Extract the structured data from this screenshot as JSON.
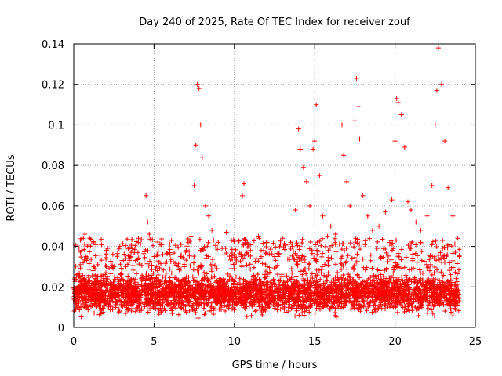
{
  "chart_data": {
    "type": "scatter",
    "title": "Day 240 of 2025, Rate Of TEC Index for receiver zouf",
    "xlabel": "GPS time / hours",
    "ylabel": "ROTI / TECUs",
    "xlim": [
      0,
      25
    ],
    "ylim": [
      0,
      0.14
    ],
    "xticks": [
      0,
      5,
      10,
      15,
      20,
      25
    ],
    "xtick_labels": [
      "0",
      "5",
      "10",
      "15",
      "20",
      "25"
    ],
    "yticks": [
      0,
      0.02,
      0.04,
      0.06,
      0.08,
      0.1,
      0.12,
      0.14
    ],
    "ytick_labels": [
      "0",
      "0.02",
      "0.04",
      "0.06",
      "0.08",
      "0.1",
      "0.12",
      "0.14"
    ],
    "grid": true,
    "marker": "plus",
    "color": "#ff0000",
    "series": [
      {
        "name": "ROTI",
        "points": [
          [
            0.1,
            0.012
          ],
          [
            0.2,
            0.018
          ],
          [
            0.3,
            0.025
          ],
          [
            0.4,
            0.031
          ],
          [
            0.5,
            0.038
          ],
          [
            0.6,
            0.044
          ],
          [
            0.7,
            0.046
          ],
          [
            0.8,
            0.033
          ],
          [
            1.0,
            0.044
          ],
          [
            1.2,
            0.028
          ],
          [
            1.5,
            0.031
          ],
          [
            2.0,
            0.027
          ],
          [
            2.5,
            0.03
          ],
          [
            3.0,
            0.033
          ],
          [
            3.5,
            0.035
          ],
          [
            4.0,
            0.037
          ],
          [
            4.5,
            0.065
          ],
          [
            4.6,
            0.052
          ],
          [
            4.7,
            0.046
          ],
          [
            5.0,
            0.035
          ],
          [
            5.5,
            0.041
          ],
          [
            6.0,
            0.036
          ],
          [
            6.5,
            0.03
          ],
          [
            7.0,
            0.038
          ],
          [
            7.3,
            0.045
          ],
          [
            7.5,
            0.07
          ],
          [
            7.6,
            0.09
          ],
          [
            7.7,
            0.12
          ],
          [
            7.8,
            0.118
          ],
          [
            7.9,
            0.1
          ],
          [
            8.0,
            0.084
          ],
          [
            8.2,
            0.06
          ],
          [
            8.4,
            0.055
          ],
          [
            8.6,
            0.048
          ],
          [
            9.0,
            0.042
          ],
          [
            9.5,
            0.047
          ],
          [
            10.0,
            0.036
          ],
          [
            10.5,
            0.065
          ],
          [
            10.6,
            0.071
          ],
          [
            10.8,
            0.042
          ],
          [
            11.0,
            0.038
          ],
          [
            11.5,
            0.045
          ],
          [
            12.0,
            0.042
          ],
          [
            12.5,
            0.035
          ],
          [
            13.0,
            0.044
          ],
          [
            13.5,
            0.042
          ],
          [
            13.8,
            0.058
          ],
          [
            14.0,
            0.098
          ],
          [
            14.1,
            0.088
          ],
          [
            14.3,
            0.079
          ],
          [
            14.5,
            0.072
          ],
          [
            14.7,
            0.06
          ],
          [
            14.9,
            0.088
          ],
          [
            15.0,
            0.092
          ],
          [
            15.1,
            0.11
          ],
          [
            15.3,
            0.075
          ],
          [
            15.5,
            0.055
          ],
          [
            15.8,
            0.045
          ],
          [
            16.0,
            0.05
          ],
          [
            16.3,
            0.046
          ],
          [
            16.7,
            0.1
          ],
          [
            16.8,
            0.085
          ],
          [
            17.0,
            0.072
          ],
          [
            17.2,
            0.06
          ],
          [
            17.5,
            0.102
          ],
          [
            17.6,
            0.123
          ],
          [
            17.7,
            0.109
          ],
          [
            17.8,
            0.093
          ],
          [
            18.0,
            0.065
          ],
          [
            18.3,
            0.055
          ],
          [
            18.6,
            0.048
          ],
          [
            19.0,
            0.05
          ],
          [
            19.4,
            0.057
          ],
          [
            19.8,
            0.063
          ],
          [
            20.0,
            0.092
          ],
          [
            20.1,
            0.113
          ],
          [
            20.2,
            0.111
          ],
          [
            20.4,
            0.105
          ],
          [
            20.6,
            0.089
          ],
          [
            20.8,
            0.062
          ],
          [
            21.0,
            0.058
          ],
          [
            21.3,
            0.052
          ],
          [
            21.6,
            0.048
          ],
          [
            22.0,
            0.055
          ],
          [
            22.3,
            0.07
          ],
          [
            22.5,
            0.1
          ],
          [
            22.6,
            0.117
          ],
          [
            22.7,
            0.138
          ],
          [
            22.9,
            0.12
          ],
          [
            23.1,
            0.092
          ],
          [
            23.3,
            0.069
          ],
          [
            23.6,
            0.055
          ],
          [
            23.9,
            0.044
          ],
          [
            24.0,
            0.035
          ]
        ],
        "band": {
          "description": "dense scatter band of low ROTI values",
          "x_range": [
            0,
            24
          ],
          "y_range": [
            0.004,
            0.03
          ]
        }
      }
    ]
  }
}
